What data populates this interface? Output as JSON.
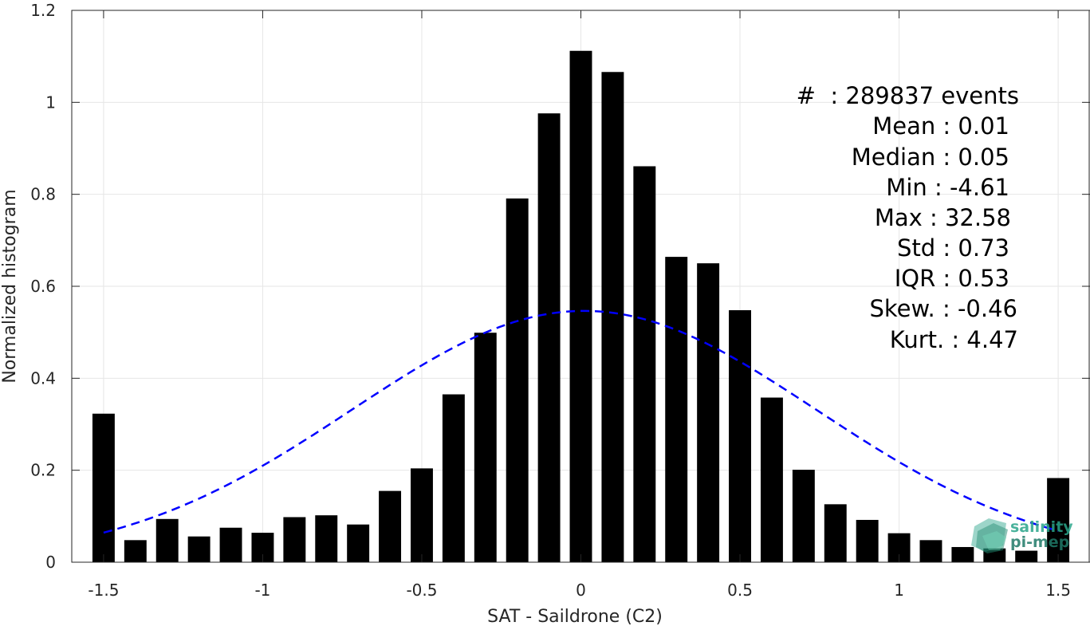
{
  "chart_data": {
    "type": "bar",
    "xlabel": "SAT - Saildrone (C2)",
    "ylabel": "Normalized histogram",
    "xlim": [
      -1.6,
      1.6
    ],
    "ylim": [
      0,
      1.2
    ],
    "grid": true,
    "x_ticks": [
      "-1.5",
      "-1",
      "-0.5",
      "0",
      "0.5",
      "1",
      "1.5"
    ],
    "y_ticks": [
      "0",
      "0.2",
      "0.4",
      "0.6",
      "0.8",
      "1",
      "1.2"
    ],
    "bar_width": 0.07,
    "x": [
      -1.5,
      -1.4,
      -1.3,
      -1.2,
      -1.1,
      -1.0,
      -0.9,
      -0.8,
      -0.7,
      -0.6,
      -0.5,
      -0.4,
      -0.3,
      -0.2,
      -0.1,
      0.0,
      0.1,
      0.2,
      0.3,
      0.4,
      0.5,
      0.6,
      0.7,
      0.8,
      0.9,
      1.0,
      1.1,
      1.2,
      1.3,
      1.4,
      1.5
    ],
    "values": [
      0.323,
      0.048,
      0.094,
      0.056,
      0.075,
      0.064,
      0.098,
      0.102,
      0.082,
      0.155,
      0.204,
      0.365,
      0.499,
      0.791,
      0.976,
      1.112,
      1.066,
      0.861,
      0.664,
      0.65,
      0.548,
      0.358,
      0.201,
      0.126,
      0.092,
      0.063,
      0.048,
      0.033,
      0.03,
      0.025,
      0.183
    ],
    "fit": {
      "type": "gaussian",
      "mean": 0.01,
      "std": 0.73,
      "color": "#0000ff",
      "line_style": "dashed",
      "x_range": [
        -1.5,
        1.5
      ]
    },
    "bar_color": "#000000"
  },
  "stats": {
    "events": "#  : 289837 events",
    "mean": "Mean : 0.01",
    "median": "Median : 0.05",
    "min": "Min : -4.61",
    "max": "Max : 32.58",
    "std": "Std : 0.73",
    "iqr": "IQR : 0.53",
    "skew": "Skew. : -0.46",
    "kurt": "Kurt. : 4.47"
  },
  "logo": {
    "line1": "salinity",
    "line2": "pi-mep",
    "color": "#2aa58a"
  }
}
